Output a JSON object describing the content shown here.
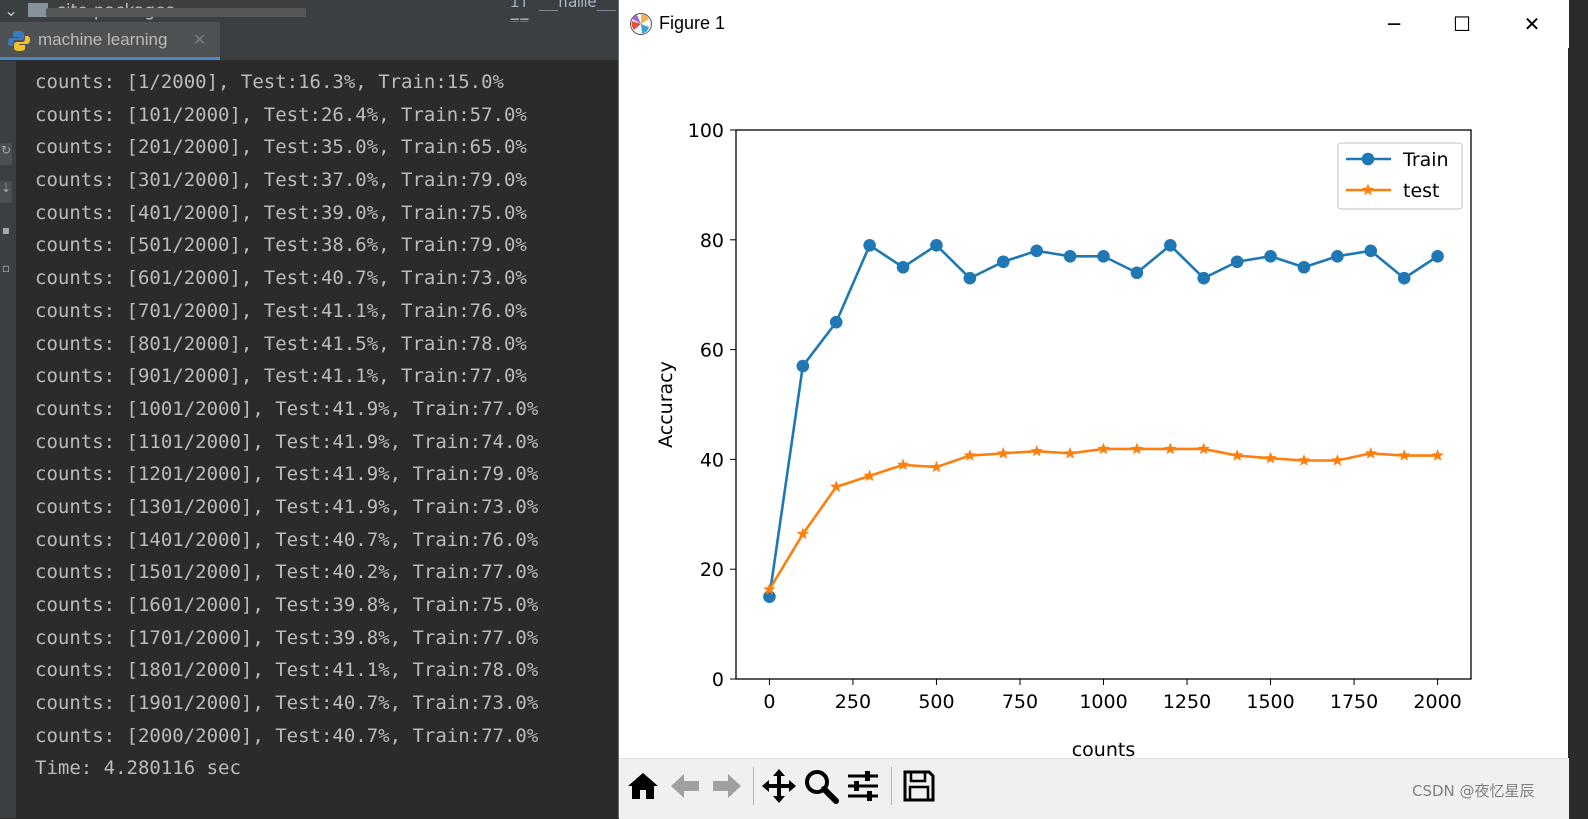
{
  "ide": {
    "project_folder": "site-packages",
    "editor_snippet": "if __name__ == '__main__':",
    "run_tab_label": "machine learning",
    "console_lines": [
      "counts: [1/2000], Test:16.3%, Train:15.0%",
      "counts: [101/2000], Test:26.4%, Train:57.0%",
      "counts: [201/2000], Test:35.0%, Train:65.0%",
      "counts: [301/2000], Test:37.0%, Train:79.0%",
      "counts: [401/2000], Test:39.0%, Train:75.0%",
      "counts: [501/2000], Test:38.6%, Train:79.0%",
      "counts: [601/2000], Test:40.7%, Train:73.0%",
      "counts: [701/2000], Test:41.1%, Train:76.0%",
      "counts: [801/2000], Test:41.5%, Train:78.0%",
      "counts: [901/2000], Test:41.1%, Train:77.0%",
      "counts: [1001/2000], Test:41.9%, Train:77.0%",
      "counts: [1101/2000], Test:41.9%, Train:74.0%",
      "counts: [1201/2000], Test:41.9%, Train:79.0%",
      "counts: [1301/2000], Test:41.9%, Train:73.0%",
      "counts: [1401/2000], Test:40.7%, Train:76.0%",
      "counts: [1501/2000], Test:40.2%, Train:77.0%",
      "counts: [1601/2000], Test:39.8%, Train:75.0%",
      "counts: [1701/2000], Test:39.8%, Train:77.0%",
      "counts: [1801/2000], Test:41.1%, Train:78.0%",
      "counts: [1901/2000], Test:40.7%, Train:73.0%",
      "counts: [2000/2000], Test:40.7%, Train:77.0%",
      "Time: 4.280116 sec"
    ]
  },
  "figure": {
    "window_title": "Figure 1",
    "buttons": {
      "minimize": "─",
      "maximize": "☐",
      "close": "✕"
    }
  },
  "chart_data": {
    "type": "line",
    "xlabel": "counts",
    "ylabel": "Accuracy",
    "xlim": [
      -100,
      2100
    ],
    "ylim": [
      0,
      100
    ],
    "xticks": [
      0,
      250,
      500,
      750,
      1000,
      1250,
      1500,
      1750,
      2000
    ],
    "yticks": [
      0,
      20,
      40,
      60,
      80,
      100
    ],
    "legend_position": "top-right",
    "x": [
      0,
      100,
      200,
      300,
      400,
      500,
      600,
      700,
      800,
      900,
      1000,
      1100,
      1200,
      1300,
      1400,
      1500,
      1600,
      1700,
      1800,
      1900,
      2000
    ],
    "series": [
      {
        "name": "Train",
        "marker": "circle",
        "color": "#1f77b4",
        "values": [
          15.0,
          57.0,
          65.0,
          79.0,
          75.0,
          79.0,
          73.0,
          76.0,
          78.0,
          77.0,
          77.0,
          74.0,
          79.0,
          73.0,
          76.0,
          77.0,
          75.0,
          77.0,
          78.0,
          73.0,
          77.0
        ]
      },
      {
        "name": "test",
        "marker": "star",
        "color": "#ff7f0e",
        "values": [
          16.3,
          26.4,
          35.0,
          37.0,
          39.0,
          38.6,
          40.7,
          41.1,
          41.5,
          41.1,
          41.9,
          41.9,
          41.9,
          41.9,
          40.7,
          40.2,
          39.8,
          39.8,
          41.1,
          40.7,
          40.7
        ]
      }
    ]
  },
  "toolbar": {
    "buttons": [
      "home-icon",
      "back-icon",
      "forward-icon",
      "pan-icon",
      "zoom-icon",
      "configure-subplots-icon",
      "save-icon"
    ]
  },
  "watermark": "CSDN @夜忆星辰"
}
